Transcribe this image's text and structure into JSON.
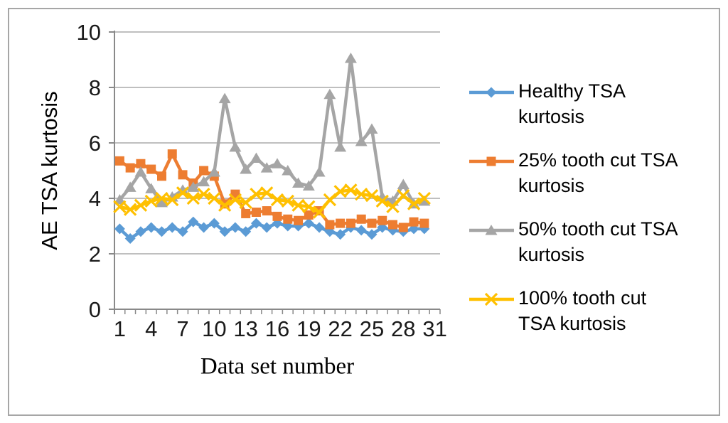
{
  "figure": {
    "y_axis_title": "AE TSA kurtosis",
    "x_axis_title": "Data set number"
  },
  "legend": {
    "items": [
      {
        "lines": [
          "Healthy TSA",
          "kurtosis"
        ]
      },
      {
        "lines": [
          "25% tooth cut TSA",
          "kurtosis"
        ]
      },
      {
        "lines": [
          "50% tooth cut TSA",
          "kurtosis"
        ]
      },
      {
        "lines": [
          "100% tooth cut",
          "TSA kurtosis"
        ]
      }
    ]
  },
  "chart_data": {
    "type": "line",
    "title": "",
    "xlabel": "Data set number",
    "ylabel": "AE TSA kurtosis",
    "ylim": [
      0,
      10
    ],
    "y_ticks": [
      0,
      2,
      4,
      6,
      8,
      10
    ],
    "x_tick_labels": [
      1,
      4,
      7,
      10,
      13,
      16,
      19,
      22,
      25,
      28,
      31
    ],
    "x_categories_count": 31,
    "grid": "horizontal",
    "legend_position": "right",
    "x": [
      1,
      2,
      3,
      4,
      5,
      6,
      7,
      8,
      9,
      10,
      11,
      12,
      13,
      14,
      15,
      16,
      17,
      18,
      19,
      20,
      21,
      22,
      23,
      24,
      25,
      26,
      27,
      28,
      29,
      30
    ],
    "series": [
      {
        "name": "Healthy TSA kurtosis",
        "color": "#5B9BD5",
        "marker": "diamond",
        "values": [
          2.9,
          2.55,
          2.8,
          2.95,
          2.8,
          2.95,
          2.8,
          3.15,
          2.95,
          3.1,
          2.8,
          2.95,
          2.8,
          3.1,
          2.95,
          3.1,
          3.0,
          3.0,
          3.1,
          2.95,
          2.8,
          2.7,
          2.95,
          2.85,
          2.7,
          2.95,
          2.85,
          2.8,
          2.9,
          2.9
        ]
      },
      {
        "name": "25% tooth cut TSA kurtosis",
        "color": "#ED7D31",
        "marker": "square",
        "values": [
          5.35,
          5.1,
          5.25,
          5.05,
          4.8,
          5.6,
          4.85,
          4.55,
          5.0,
          4.8,
          3.8,
          4.15,
          3.45,
          3.5,
          3.55,
          3.35,
          3.25,
          3.2,
          3.4,
          3.55,
          3.05,
          3.1,
          3.1,
          3.25,
          3.1,
          3.2,
          3.05,
          2.95,
          3.15,
          3.1
        ]
      },
      {
        "name": "50% tooth cut TSA kurtosis",
        "color": "#A5A5A5",
        "marker": "triangle",
        "values": [
          3.95,
          4.4,
          4.95,
          4.35,
          3.85,
          4.05,
          4.3,
          4.4,
          4.6,
          4.95,
          7.6,
          5.85,
          5.05,
          5.45,
          5.1,
          5.25,
          5.0,
          4.55,
          4.45,
          4.95,
          7.75,
          5.85,
          9.05,
          6.05,
          6.5,
          4.05,
          3.9,
          4.5,
          3.8,
          3.9
        ]
      },
      {
        "name": "100% tooth cut TSA kurtosis",
        "color": "#FFC000",
        "marker": "x",
        "values": [
          3.7,
          3.6,
          3.75,
          3.9,
          4.0,
          3.95,
          4.2,
          4.0,
          4.15,
          4.0,
          3.75,
          3.95,
          3.85,
          4.15,
          4.2,
          3.95,
          3.9,
          3.75,
          3.7,
          3.5,
          3.95,
          4.25,
          4.3,
          4.15,
          4.1,
          3.9,
          3.7,
          4.1,
          3.8,
          4.0
        ]
      }
    ]
  }
}
